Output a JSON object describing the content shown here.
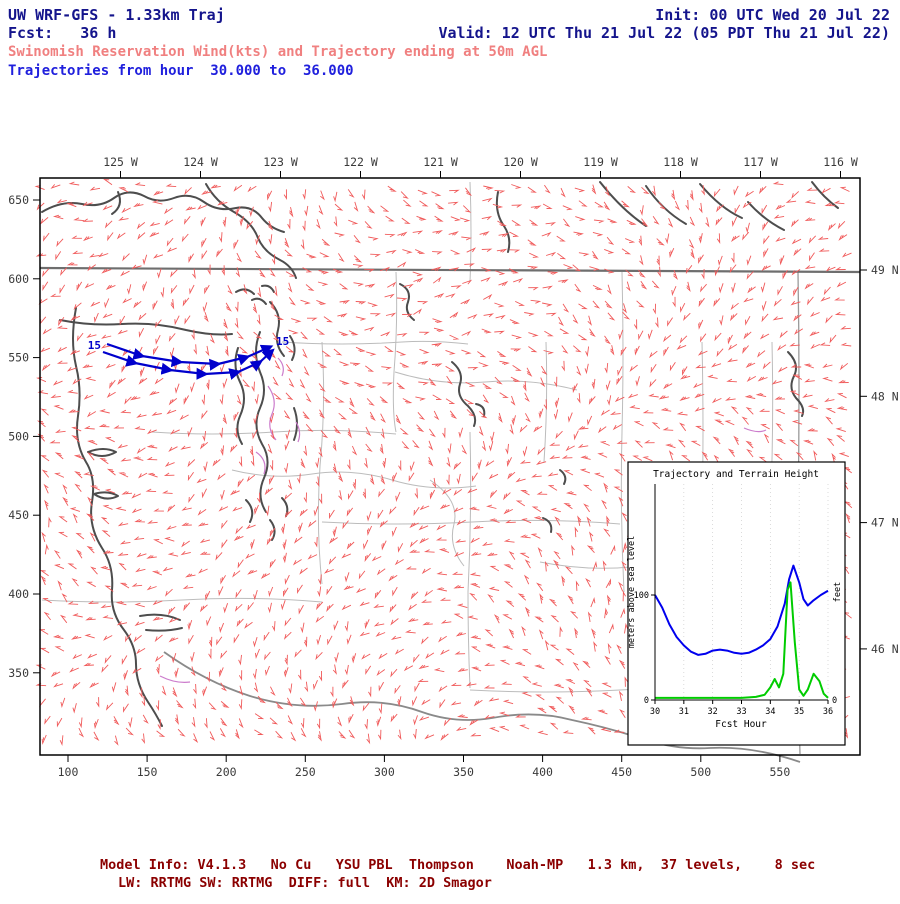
{
  "header": {
    "model_title": "UW WRF-GFS - 1.33km Traj",
    "init": "Init: 00 UTC Wed 20 Jul 22",
    "fcst": "Fcst:   36 h",
    "valid": "Valid: 12 UTC Thu 21 Jul 22 (05 PDT Thu 21 Jul 22)",
    "product_line": "Swinomish Reservation Wind(kts) and Trajectory ending at 50m AGL",
    "traj_line": "Trajectories from hour  30.000 to  36.000"
  },
  "map": {
    "top_axis_labels": [
      "125 W",
      "124 W",
      "123 W",
      "122 W",
      "121 W",
      "120 W",
      "119 W",
      "118 W",
      "117 W",
      "116 W"
    ],
    "left_axis_labels": [
      "650",
      "600",
      "550",
      "500",
      "450",
      "400",
      "350"
    ],
    "right_axis_labels": [
      "49 N",
      "48 N",
      "47 N",
      "46 N"
    ],
    "bottom_axis_labels": [
      "100",
      "150",
      "200",
      "250",
      "300",
      "350",
      "400",
      "450",
      "500",
      "550"
    ],
    "trajectory_labels": [
      "15",
      "15"
    ],
    "colors": {
      "wind_barb": "#f05a5a",
      "trajectory": "#0000cc",
      "coastline": "#4d4d4d",
      "county": "#bcbcbc",
      "urban": "#cc7ccc"
    }
  },
  "chart_data": {
    "type": "line",
    "title": "Trajectory and Terrain Height",
    "xlabel": "Fcst Hour",
    "ylabel_left": "meters above sea level",
    "ylabel_right": "feet",
    "x_ticks": [
      30,
      31,
      32,
      33,
      34,
      35,
      36
    ],
    "y_ticks_left": [
      0,
      100
    ],
    "y_ticks_right": [
      0
    ],
    "xlim": [
      30,
      36
    ],
    "ylim": [
      0,
      200
    ],
    "legend": "none",
    "grid": "dotted-vertical",
    "series": [
      {
        "name": "trajectory-height",
        "color": "#0000ee",
        "x": [
          30,
          30.25,
          30.5,
          30.75,
          31,
          31.25,
          31.5,
          31.75,
          32,
          32.25,
          32.5,
          32.75,
          33,
          33.25,
          33.5,
          33.75,
          34,
          34.25,
          34.5,
          34.65,
          34.8,
          35,
          35.15,
          35.3,
          35.5,
          35.75,
          36
        ],
        "y": [
          100,
          88,
          72,
          60,
          52,
          46,
          43,
          44,
          47,
          48,
          47,
          45,
          44,
          45,
          48,
          52,
          58,
          70,
          92,
          115,
          128,
          112,
          96,
          90,
          95,
          100,
          104
        ]
      },
      {
        "name": "terrain-height",
        "color": "#00cc00",
        "x": [
          30,
          31,
          32,
          33,
          33.5,
          33.8,
          34,
          34.15,
          34.3,
          34.45,
          34.6,
          34.7,
          34.85,
          35,
          35.15,
          35.3,
          35.5,
          35.7,
          35.85,
          36
        ],
        "y": [
          2,
          2,
          2,
          2,
          3,
          5,
          12,
          20,
          12,
          25,
          105,
          112,
          55,
          10,
          4,
          10,
          25,
          18,
          6,
          2
        ]
      }
    ]
  },
  "footer": {
    "line1": "Model Info: V4.1.3   No Cu   YSU PBL  Thompson    Noah-MP   1.3 km,  37 levels,    8 sec",
    "line2": "LW: RRTMG SW: RRTMG  DIFF: full  KM: 2D Smagor"
  }
}
